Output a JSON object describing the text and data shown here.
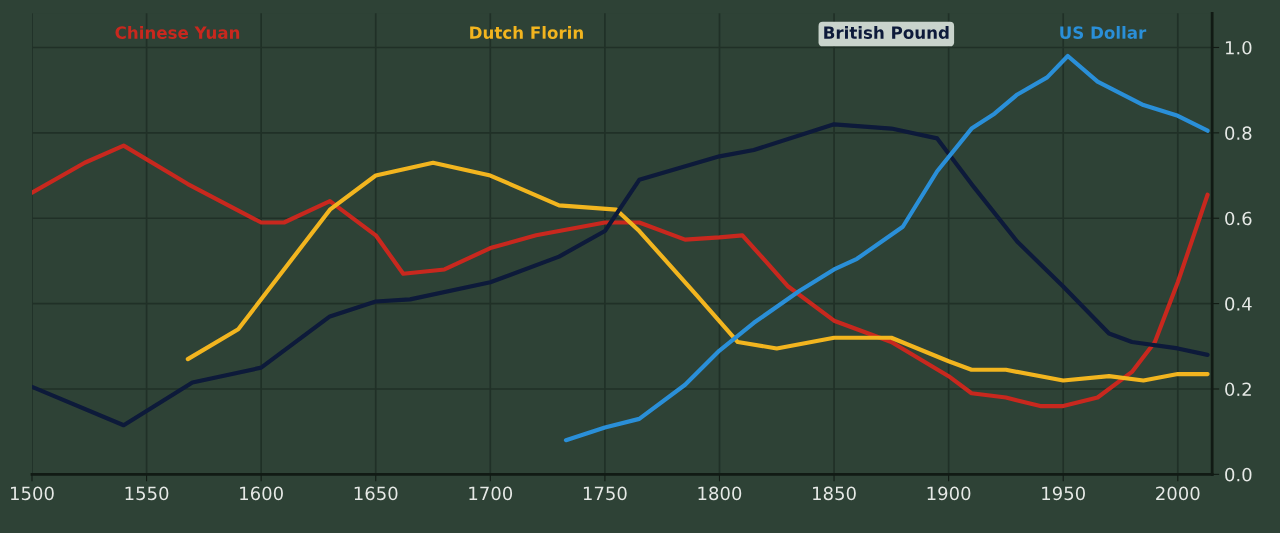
{
  "chart_data": {
    "type": "line",
    "xlim": [
      1500,
      2015
    ],
    "xticks": [
      1500,
      1550,
      1600,
      1650,
      1700,
      1750,
      1800,
      1850,
      1900,
      1950,
      2000
    ],
    "ylim": [
      0,
      1.08
    ],
    "yticks": [
      {
        "value": 0,
        "label": "0.0"
      },
      0.2,
      0.4,
      0.6,
      0.8,
      {
        "value": 1,
        "label": "1.0"
      }
    ],
    "grid": true,
    "legend": "top",
    "marker": "none",
    "line_style": "solid",
    "series": [
      {
        "name": "Chinese Yuan",
        "color": "#c8281e",
        "x": [
          1500,
          1523,
          1540,
          1568,
          1600,
          1610,
          1630,
          1650,
          1662,
          1680,
          1700,
          1720,
          1750,
          1765,
          1785,
          1800,
          1810,
          1830,
          1850,
          1875,
          1900,
          1910,
          1925,
          1940,
          1950,
          1965,
          1980,
          1990,
          2000,
          2013
        ],
        "values": [
          0.66,
          0.73,
          0.77,
          0.68,
          0.59,
          0.59,
          0.64,
          0.56,
          0.47,
          0.48,
          0.53,
          0.56,
          0.59,
          0.59,
          0.55,
          0.555,
          0.56,
          0.44,
          0.36,
          0.31,
          0.23,
          0.19,
          0.18,
          0.16,
          0.16,
          0.18,
          0.24,
          0.31,
          0.45,
          0.655
        ]
      },
      {
        "name": "Dutch Florin",
        "color": "#f2b51f",
        "x": [
          1568,
          1590,
          1630,
          1650,
          1675,
          1700,
          1730,
          1755,
          1765,
          1790,
          1808,
          1825,
          1850,
          1875,
          1900,
          1910,
          1925,
          1950,
          1970,
          1985,
          2000,
          2013
        ],
        "values": [
          0.27,
          0.34,
          0.62,
          0.7,
          0.73,
          0.7,
          0.63,
          0.62,
          0.57,
          0.42,
          0.31,
          0.295,
          0.32,
          0.32,
          0.265,
          0.245,
          0.245,
          0.22,
          0.23,
          0.22,
          0.235,
          0.235
        ]
      },
      {
        "name": "British Pound",
        "color": "#0d1a3a",
        "x": [
          1500,
          1540,
          1570,
          1600,
          1630,
          1650,
          1665,
          1700,
          1730,
          1750,
          1765,
          1800,
          1815,
          1850,
          1875,
          1895,
          1910,
          1930,
          1950,
          1970,
          1980,
          2000,
          2013
        ],
        "values": [
          0.205,
          0.115,
          0.215,
          0.25,
          0.37,
          0.405,
          0.41,
          0.45,
          0.51,
          0.57,
          0.69,
          0.745,
          0.76,
          0.82,
          0.81,
          0.787,
          0.68,
          0.545,
          0.44,
          0.33,
          0.31,
          0.295,
          0.28
        ]
      },
      {
        "name": "US Dollar",
        "color": "#2a8fd8",
        "x": [
          1733,
          1750,
          1765,
          1785,
          1800,
          1815,
          1835,
          1850,
          1860,
          1880,
          1895,
          1910,
          1920,
          1930,
          1943,
          1952,
          1965,
          1985,
          2000,
          2013
        ],
        "values": [
          0.08,
          0.11,
          0.13,
          0.21,
          0.29,
          0.355,
          0.43,
          0.48,
          0.505,
          0.58,
          0.71,
          0.81,
          0.845,
          0.89,
          0.93,
          0.98,
          0.92,
          0.865,
          0.84,
          0.805
        ]
      }
    ]
  }
}
